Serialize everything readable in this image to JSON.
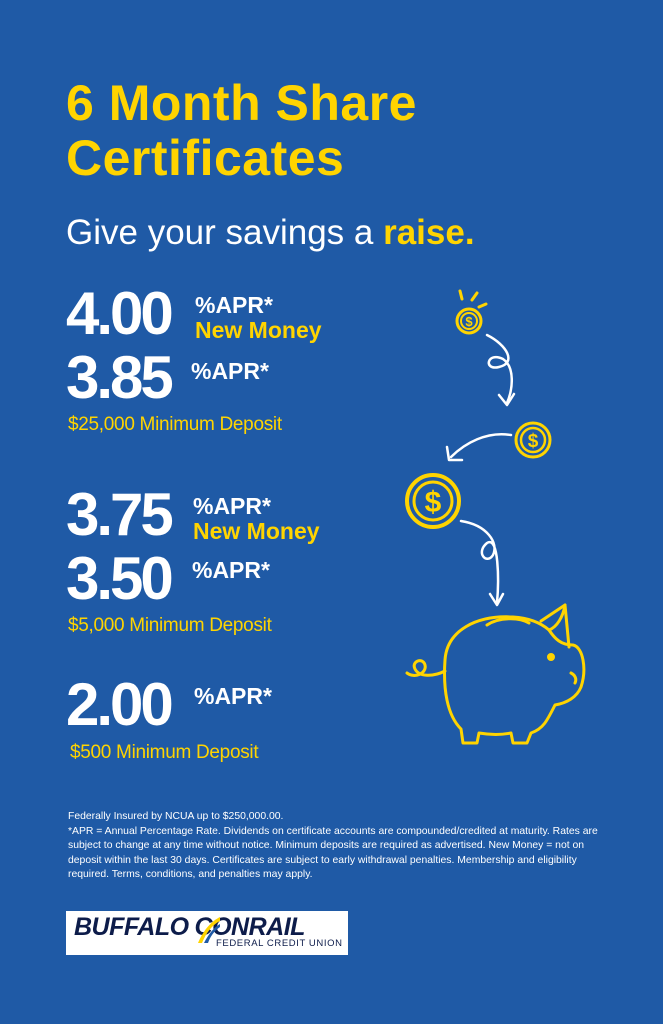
{
  "headline": {
    "line1": "6 Month Share",
    "line2": "Certificates"
  },
  "tagline": {
    "prefix": "Give your savings a ",
    "highlight": "raise",
    "suffix": "."
  },
  "tiers": [
    {
      "new_money_rate": "4.00",
      "new_money_apr": "%APR*",
      "new_money_label": "New Money",
      "rate": "3.85",
      "apr": "%APR*",
      "minimum": "$25,000 Minimum Deposit"
    },
    {
      "new_money_rate": "3.75",
      "new_money_apr": "%APR*",
      "new_money_label": "New Money",
      "rate": "3.50",
      "apr": "%APR*",
      "minimum": "$5,000 Minimum Deposit"
    },
    {
      "rate": "2.00",
      "apr": "%APR*",
      "minimum": "$500 Minimum Deposit"
    }
  ],
  "disclaimer": {
    "line1": "Federally Insured by NCUA up to $250,000.00.",
    "line2": "*APR = Annual Percentage Rate. Dividends on certificate accounts are compounded/credited at maturity. Rates are subject to change at any time without notice. Minimum deposits are required as advertised. New Money = not on deposit within the last 30 days.  Certificates are subject to early withdrawal penalties. Membership and eligibility required. Terms, conditions, and penalties may apply."
  },
  "logo": {
    "name_part1": "BUFFALO",
    "name_part2": "CONRAIL",
    "subtitle": "FEDERAL CREDIT UNION"
  },
  "illustration": {
    "coin_symbol": "$",
    "icons": [
      "dollar-coin-icon",
      "curved-arrow-icon",
      "piggy-bank-icon"
    ]
  },
  "colors": {
    "background": "#1f5aa6",
    "accent": "#ffd400",
    "text": "#ffffff",
    "logo_navy": "#0d1c4a"
  }
}
